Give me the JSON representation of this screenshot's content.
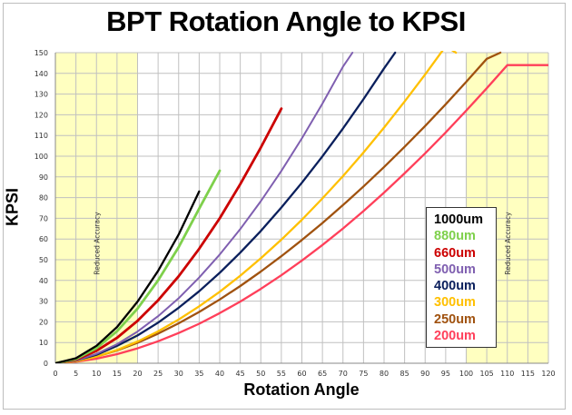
{
  "chart_data": {
    "type": "line",
    "title": "BPT Rotation Angle to KPSI",
    "xlabel": "Rotation Angle",
    "ylabel": "KPSI",
    "xlim": [
      0,
      120
    ],
    "ylim": [
      0,
      150
    ],
    "xticks": [
      0,
      5,
      10,
      15,
      20,
      25,
      30,
      35,
      40,
      45,
      50,
      55,
      60,
      65,
      70,
      75,
      80,
      85,
      90,
      95,
      100,
      105,
      110,
      115,
      120
    ],
    "yticks": [
      0,
      10,
      20,
      30,
      40,
      50,
      60,
      70,
      80,
      90,
      100,
      110,
      120,
      130,
      140,
      150
    ],
    "grid": true,
    "legend_position": "right",
    "shaded_regions": [
      {
        "x_range": [
          0,
          20
        ],
        "label": "Reduced Accuracy",
        "color": "#ffffc0"
      },
      {
        "x_range": [
          100,
          120
        ],
        "label": "Reduced Accuracy",
        "color": "#ffffc0"
      }
    ],
    "series": [
      {
        "name": "1000um",
        "color": "#000000",
        "x": [
          0,
          5,
          10,
          15,
          20,
          25,
          30,
          35
        ],
        "y": [
          0,
          2.4,
          8.4,
          17.5,
          29.8,
          44.6,
          62.2,
          83
        ]
      },
      {
        "name": "880um",
        "color": "#7ed04b",
        "x": [
          0,
          5,
          10,
          15,
          20,
          25,
          30,
          35,
          40
        ],
        "y": [
          0,
          2.0,
          7.3,
          15.5,
          26.4,
          40.0,
          56.1,
          74.7,
          93
        ]
      },
      {
        "name": "660um",
        "color": "#cc0000",
        "x": [
          0,
          5,
          10,
          15,
          20,
          25,
          30,
          35,
          40,
          45,
          50,
          55
        ],
        "y": [
          0,
          1.7,
          6.0,
          12.3,
          20.5,
          30.4,
          42.0,
          55.3,
          70.0,
          86.5,
          104.2,
          123
        ]
      },
      {
        "name": "500um",
        "color": "#7f5fb0",
        "x": [
          0,
          5,
          10,
          15,
          20,
          25,
          30,
          35,
          40,
          45,
          50,
          55,
          60,
          65,
          70,
          72.3
        ],
        "y": [
          0,
          1.3,
          4.5,
          9.2,
          15.3,
          22.7,
          31.4,
          41.4,
          52.5,
          64.8,
          78.3,
          92.9,
          108.6,
          125.4,
          143.3,
          150
        ]
      },
      {
        "name": "400um",
        "color": "#0a1f5c",
        "x": [
          0,
          5,
          10,
          15,
          20,
          25,
          30,
          35,
          40,
          45,
          50,
          55,
          60,
          65,
          70,
          75,
          80,
          82.7
        ],
        "y": [
          0,
          1.3,
          4.1,
          8.4,
          13.4,
          19.6,
          26.8,
          34.8,
          43.7,
          53.4,
          63.9,
          75.2,
          87.2,
          99.9,
          113.4,
          127.6,
          142.4,
          150
        ]
      },
      {
        "name": "300um",
        "color": "#ffc000",
        "x": [
          0,
          5,
          10,
          15,
          20,
          25,
          30,
          35,
          40,
          45,
          50,
          55,
          60,
          65,
          70,
          75,
          80,
          85,
          90,
          95,
          97.5
        ],
        "y": [
          0,
          0.9,
          3.2,
          6.4,
          10.5,
          15.4,
          21.1,
          27.5,
          34.5,
          42.3,
          50.7,
          59.7,
          69.3,
          79.6,
          90.4,
          101.8,
          113.8,
          126.4,
          139.5,
          153.1,
          150
        ]
      },
      {
        "name": "250um",
        "color": "#a0520f",
        "x": [
          0,
          5,
          10,
          15,
          20,
          25,
          30,
          35,
          40,
          45,
          50,
          55,
          60,
          65,
          70,
          75,
          80,
          85,
          90,
          95,
          100,
          105,
          108.3
        ],
        "y": [
          0,
          1.1,
          3.2,
          6.2,
          9.9,
          14.3,
          19.3,
          24.8,
          30.8,
          37.3,
          44.3,
          51.7,
          59.5,
          67.7,
          76.4,
          85.4,
          94.8,
          104.5,
          114.6,
          125.1,
          135.9,
          147.0,
          150
        ]
      },
      {
        "name": "200um",
        "color": "#ff3f5a",
        "x": [
          0,
          5,
          10,
          15,
          20,
          25,
          30,
          35,
          40,
          45,
          50,
          55,
          60,
          65,
          70,
          75,
          80,
          85,
          90,
          95,
          100,
          105,
          110,
          115,
          120
        ],
        "y": [
          0,
          0.7,
          2.2,
          4.4,
          7.2,
          10.6,
          14.6,
          19.1,
          24.2,
          29.8,
          35.9,
          42.5,
          49.6,
          57.1,
          65.1,
          73.5,
          82.4,
          91.7,
          101.4,
          111.5,
          122.0,
          132.8,
          144.0,
          144,
          144
        ]
      }
    ]
  }
}
